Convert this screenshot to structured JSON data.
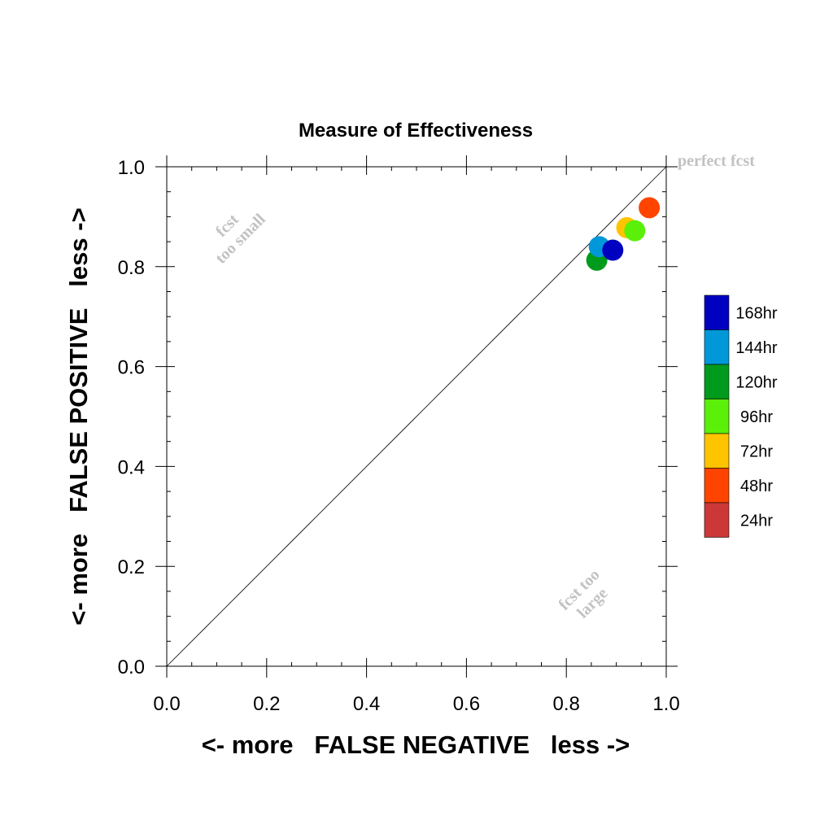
{
  "chart_data": {
    "type": "scatter",
    "title": "Measure of Effectiveness",
    "xlabel": "<- more   FALSE NEGATIVE   less ->",
    "ylabel": "<- more   FALSE POSITIVE   less ->",
    "xlim": [
      0.0,
      1.0
    ],
    "ylim": [
      0.0,
      1.0
    ],
    "xticks": [
      "0.0",
      "0.2",
      "0.4",
      "0.6",
      "0.8",
      "1.0"
    ],
    "yticks": [
      "0.0",
      "0.2",
      "0.4",
      "0.6",
      "0.8",
      "1.0"
    ],
    "grid": false,
    "annotations": {
      "perfect": "perfect fcst",
      "too_small_line1": "fcst",
      "too_small_line2": "too small",
      "too_large_line1": "fcst too",
      "too_large_line2": "large"
    },
    "series": [
      {
        "name": "168hr",
        "color": "#0000c0",
        "x": 0.893,
        "y": 0.833
      },
      {
        "name": "144hr",
        "color": "#0098d8",
        "x": 0.866,
        "y": 0.84
      },
      {
        "name": "120hr",
        "color": "#009a1c",
        "x": 0.861,
        "y": 0.813
      },
      {
        "name": "96hr",
        "color": "#5af00a",
        "x": 0.937,
        "y": 0.872
      },
      {
        "name": "72hr",
        "color": "#ffc400",
        "x": 0.921,
        "y": 0.878
      },
      {
        "name": "48hr",
        "color": "#ff4400",
        "x": 0.966,
        "y": 0.918
      },
      {
        "name": "24hr",
        "color": "#cc3838",
        "x": null,
        "y": null
      }
    ],
    "legend": "right"
  }
}
